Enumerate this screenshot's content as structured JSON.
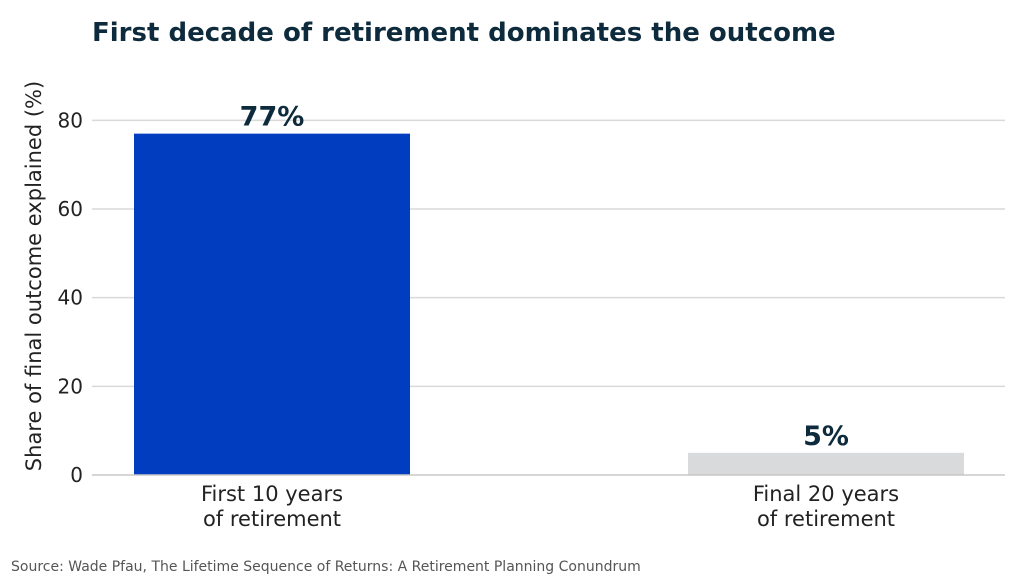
{
  "chart_data": {
    "type": "bar",
    "title": "First decade of retirement dominates the outcome",
    "xlabel": "",
    "ylabel": "Share of final outcome explained (%)",
    "categories": [
      [
        "First 10 years",
        "of retirement"
      ],
      [
        "Final 20 years",
        "of retirement"
      ]
    ],
    "values": [
      77,
      5
    ],
    "value_labels": [
      "77%",
      "5%"
    ],
    "bar_colors": [
      "#003dbf",
      "#d8dadc"
    ],
    "ylim": [
      0,
      90
    ],
    "yticks": [
      0,
      20,
      40,
      60,
      80
    ],
    "grid": "horizontal",
    "legend": "none"
  },
  "source": "Source: Wade Pfau, The Lifetime Sequence of Returns: A Retirement Planning Conundrum",
  "colors": {
    "title": "#0d2b3c",
    "grid": "#d9d9d9",
    "axis": "#c8c8c8",
    "text": "#222222",
    "source": "#555555"
  }
}
